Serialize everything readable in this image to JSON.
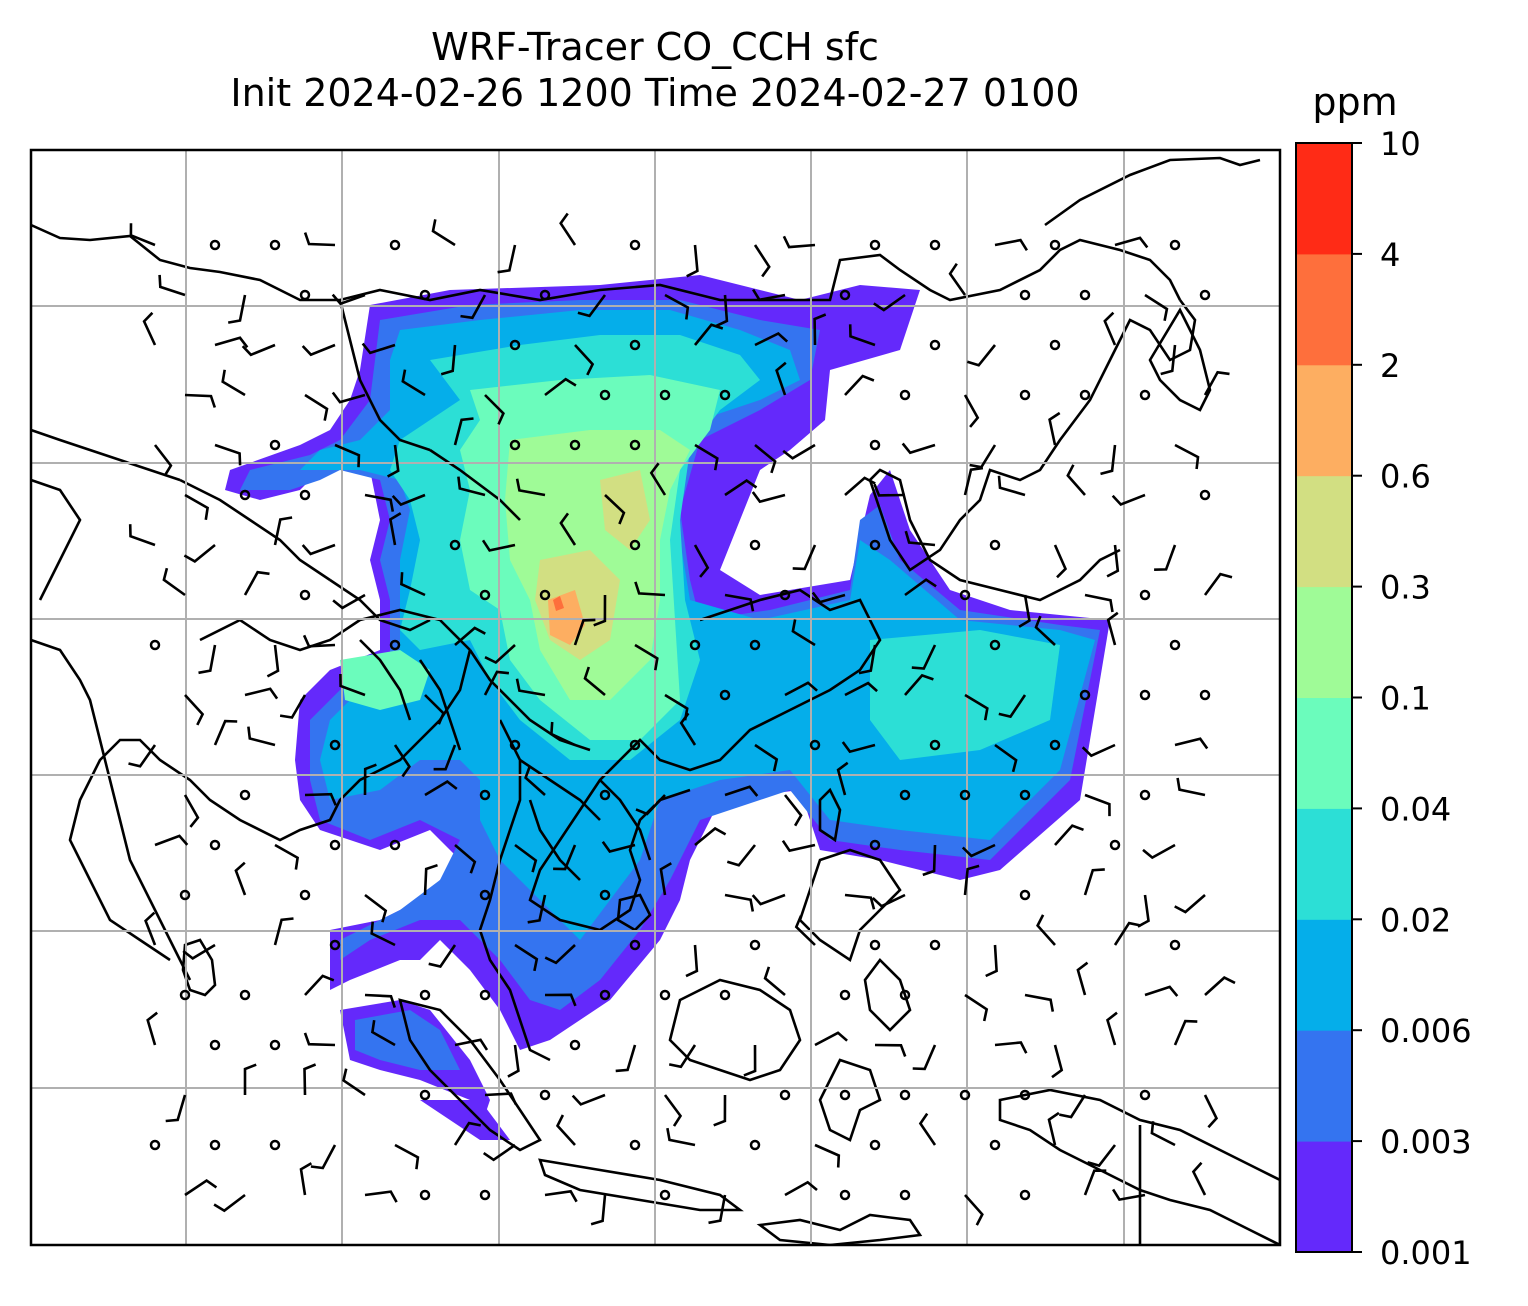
{
  "title": {
    "line1": "WRF-Tracer CO_CCH sfc",
    "line2": "Init 2024-02-26 1200 Time 2024-02-27 0100"
  },
  "colorbar": {
    "unit": "ppm",
    "levels": [
      "0.001",
      "0.003",
      "0.006",
      "0.02",
      "0.04",
      "0.1",
      "0.3",
      "0.6",
      "2",
      "4",
      "10"
    ],
    "colors": [
      "#6429fb",
      "#3474f0",
      "#05aeea",
      "#2cdfd6",
      "#6bfcbc",
      "#9ffb97",
      "#d2df82",
      "#fdae61",
      "#fe6f3c",
      "#ff2b16"
    ]
  },
  "map": {
    "region": "South and Southeast Asia",
    "plot_frame_color": "#000000",
    "gridlines": true,
    "gridline_color": "#b0b0b0",
    "coastline_color": "#000000",
    "wind_barbs": true,
    "calm_circles": true
  }
}
